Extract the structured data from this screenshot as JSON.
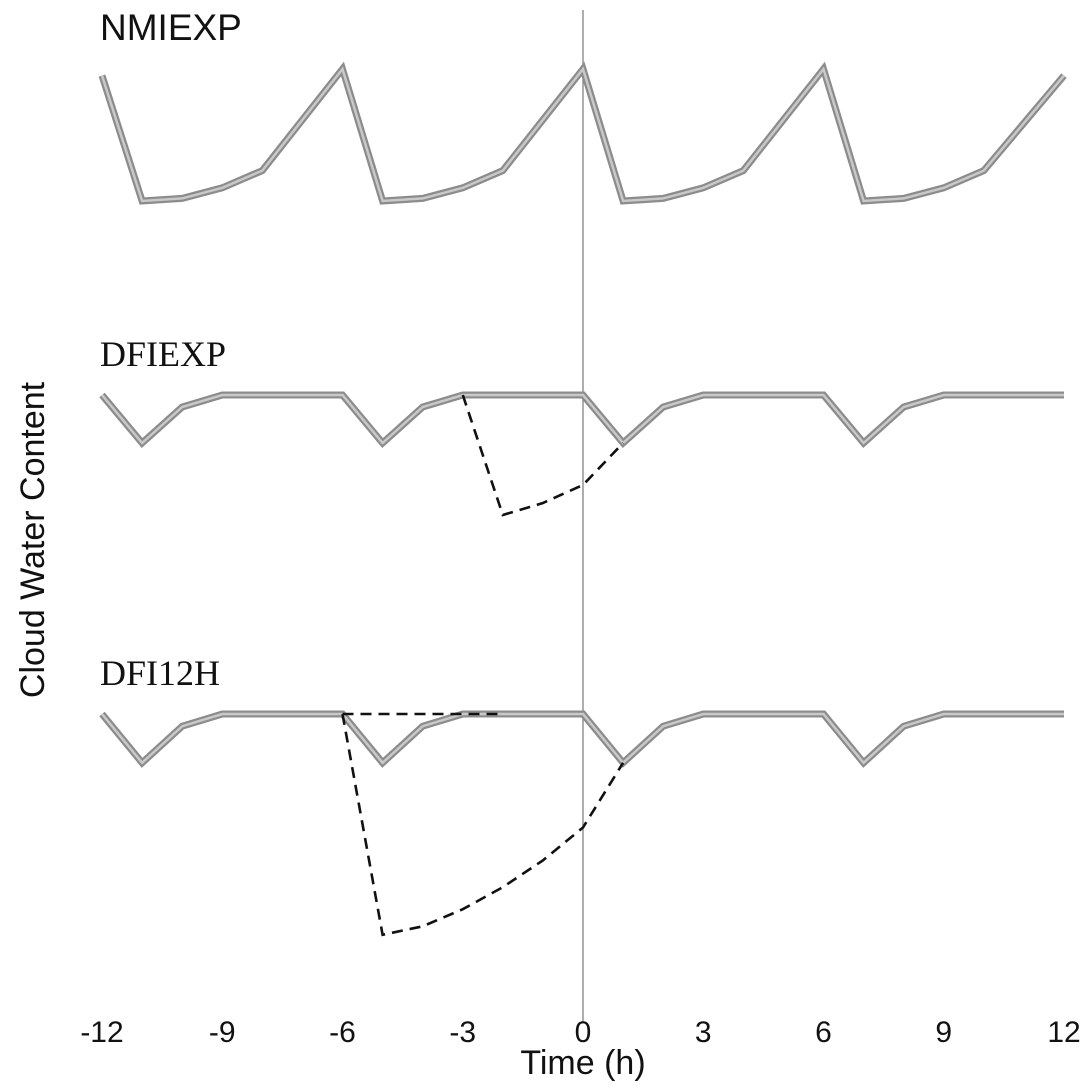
{
  "chart_data": {
    "type": "line",
    "xlabel": "Time (h)",
    "ylabel": "Cloud Water Content",
    "xlim": [
      -12,
      12
    ],
    "xticks": [
      -12,
      -9,
      -6,
      -3,
      0,
      3,
      6,
      9,
      12
    ],
    "reference_line_x": 0,
    "panels": [
      {
        "label": "NMIEXP",
        "series": [
          {
            "style": "solid-gray",
            "x": [
              -12,
              -11,
              -10,
              -9,
              -8,
              -6,
              -6,
              -5,
              -4,
              -3,
              -2,
              0,
              0,
              1,
              2,
              3,
              4,
              6,
              6,
              7,
              8,
              9,
              10,
              12
            ],
            "y": [
              0.95,
              0.0,
              0.02,
              0.1,
              0.23,
              1.0,
              1.0,
              0.0,
              0.02,
              0.1,
              0.23,
              1.0,
              1.0,
              0.0,
              0.02,
              0.1,
              0.23,
              1.0,
              1.0,
              0.0,
              0.02,
              0.1,
              0.23,
              0.95
            ]
          }
        ]
      },
      {
        "label": "DFIEXP",
        "series": [
          {
            "style": "solid-gray",
            "x": [
              -12,
              -11,
              -10,
              -9,
              -6,
              -5,
              -4,
              -3,
              0,
              1,
              2,
              3,
              6,
              7,
              8,
              9,
              12
            ],
            "y": [
              0.0,
              -0.4,
              -0.1,
              0.0,
              0.0,
              -0.4,
              -0.1,
              0.0,
              0.0,
              -0.4,
              -0.1,
              0.0,
              0.0,
              -0.4,
              -0.1,
              0.0,
              0.0
            ]
          },
          {
            "style": "dashed-black",
            "x": [
              -3,
              -2,
              -1,
              0,
              1
            ],
            "y": [
              0.0,
              -1.0,
              -0.9,
              -0.75,
              -0.4
            ]
          }
        ]
      },
      {
        "label": "DFI12H",
        "series": [
          {
            "style": "solid-gray",
            "x": [
              -12,
              -11,
              -10,
              -9,
              -6,
              -5,
              -4,
              -3,
              0,
              1,
              2,
              3,
              6,
              7,
              8,
              9,
              12
            ],
            "y": [
              0.0,
              -0.4,
              -0.1,
              0.0,
              0.0,
              -0.4,
              -0.1,
              0.0,
              0.0,
              -0.4,
              -0.1,
              0.0,
              0.0,
              -0.4,
              -0.1,
              0.0,
              0.0
            ]
          },
          {
            "style": "dashed-black",
            "x": [
              -6,
              -3,
              -2
            ],
            "y": [
              0.0,
              0.0,
              0.0
            ]
          },
          {
            "style": "dashed-black",
            "x": [
              -6,
              -5,
              -4,
              -3,
              -2,
              -1,
              0,
              1
            ],
            "y": [
              0.0,
              -1.81,
              -1.74,
              -1.6,
              -1.42,
              -1.2,
              -0.93,
              -0.4
            ]
          }
        ]
      }
    ]
  }
}
